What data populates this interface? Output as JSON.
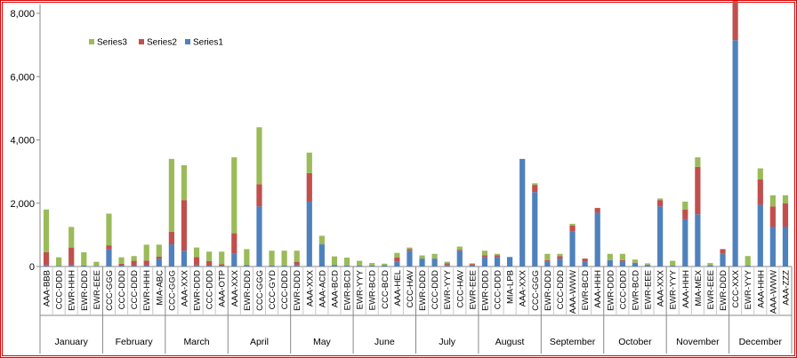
{
  "chart_data": {
    "type": "bar",
    "stacked": true,
    "ylim": [
      0,
      8000
    ],
    "yticks": [
      "0",
      "2,000",
      "4,000",
      "6,000",
      "8,000"
    ],
    "ytick_values": [
      0,
      2000,
      4000,
      6000,
      8000
    ],
    "grid": false,
    "legend_position": "top-left",
    "colors": {
      "Series1": "#4f81bd",
      "Series2": "#c0504d",
      "Series3": "#9bbb59",
      "frame": "#e00000"
    },
    "categories": [
      "AAA-BBB",
      "CCC-DDD",
      "EWR-HHH",
      "EWR-DDD",
      "EWR-EEE",
      "CCC-GGG",
      "CCC-DDD",
      "CCC-DDD",
      "EWR-HHH",
      "MIA-ABC",
      "CCC-GGG",
      "AAA-XXX",
      "EWR-DDD",
      "CCC-DDD",
      "AAA-OTP",
      "AAA-XXX",
      "EWR-DDD",
      "CCC-GGG",
      "CCC-GYD",
      "CCC-DDD",
      "EWR-DDD",
      "AAA-XXX",
      "AAA-ACD",
      "AAA-BCD",
      "EWR-BCD",
      "EWR-YYY",
      "EWR-BCD",
      "CCC-BCD",
      "AAA-HEL",
      "CCC-HAV",
      "EWR-DDD",
      "CCC-DDD",
      "EWR-YYY",
      "CCC-HAV",
      "EWR-EEE",
      "EWR-DDD",
      "CCC-DDD",
      "MIA-LPB",
      "AAA-XXX",
      "CCC-GGG",
      "EWR-DDD",
      "CCC-DDD",
      "AAA-WWW",
      "EWR-BCD",
      "AAA-HHH",
      "EWR-DDD",
      "CCC-DDD",
      "EWR-BCD",
      "EWR-EEE",
      "AAA-XXX",
      "EWR-YYY",
      "AAA-HHH",
      "MIA-MEX",
      "EWR-EEE",
      "EWR-DDD",
      "CCC-XXX",
      "EWR-YYY",
      "AAA-HHH",
      "AAA-WWW",
      "AAA-ZZZ"
    ],
    "month_groups": [
      {
        "label": "January",
        "count": 5
      },
      {
        "label": "February",
        "count": 5
      },
      {
        "label": "March",
        "count": 5
      },
      {
        "label": "April",
        "count": 5
      },
      {
        "label": "May",
        "count": 5
      },
      {
        "label": "June",
        "count": 5
      },
      {
        "label": "July",
        "count": 5
      },
      {
        "label": "August",
        "count": 5
      },
      {
        "label": "September",
        "count": 5
      },
      {
        "label": "October",
        "count": 5
      },
      {
        "label": "November",
        "count": 5
      },
      {
        "label": "December",
        "count": 5
      }
    ],
    "series": [
      {
        "name": "Series1",
        "values": [
          50,
          20,
          50,
          30,
          20,
          550,
          40,
          30,
          40,
          250,
          700,
          500,
          50,
          30,
          30,
          400,
          50,
          1900,
          30,
          30,
          50,
          2050,
          700,
          50,
          30,
          30,
          30,
          40,
          150,
          500,
          250,
          250,
          50,
          500,
          30,
          300,
          300,
          300,
          3400,
          2350,
          150,
          250,
          1100,
          150,
          1700,
          200,
          150,
          100,
          50,
          1900,
          30,
          1500,
          1650,
          40,
          400,
          7150,
          30,
          1950,
          1250,
          1250
        ]
      },
      {
        "name": "Series2",
        "values": [
          400,
          0,
          550,
          0,
          0,
          120,
          50,
          150,
          150,
          60,
          400,
          1600,
          250,
          140,
          40,
          650,
          0,
          700,
          0,
          0,
          100,
          900,
          0,
          0,
          0,
          0,
          0,
          0,
          130,
          50,
          0,
          0,
          50,
          30,
          50,
          50,
          50,
          0,
          0,
          230,
          50,
          80,
          200,
          100,
          150,
          0,
          50,
          20,
          10,
          200,
          0,
          300,
          1500,
          0,
          150,
          1300,
          0,
          800,
          650,
          750
        ]
      },
      {
        "name": "Series3",
        "values": [
          1350,
          270,
          650,
          420,
          130,
          1000,
          200,
          150,
          500,
          380,
          2300,
          1100,
          300,
          300,
          400,
          2400,
          500,
          1800,
          470,
          470,
          350,
          650,
          270,
          270,
          250,
          150,
          80,
          50,
          150,
          50,
          100,
          150,
          50,
          100,
          20,
          150,
          50,
          0,
          0,
          50,
          200,
          70,
          50,
          0,
          0,
          200,
          200,
          100,
          40,
          50,
          150,
          250,
          300,
          70,
          0,
          0,
          300,
          350,
          350,
          250
        ]
      }
    ]
  }
}
